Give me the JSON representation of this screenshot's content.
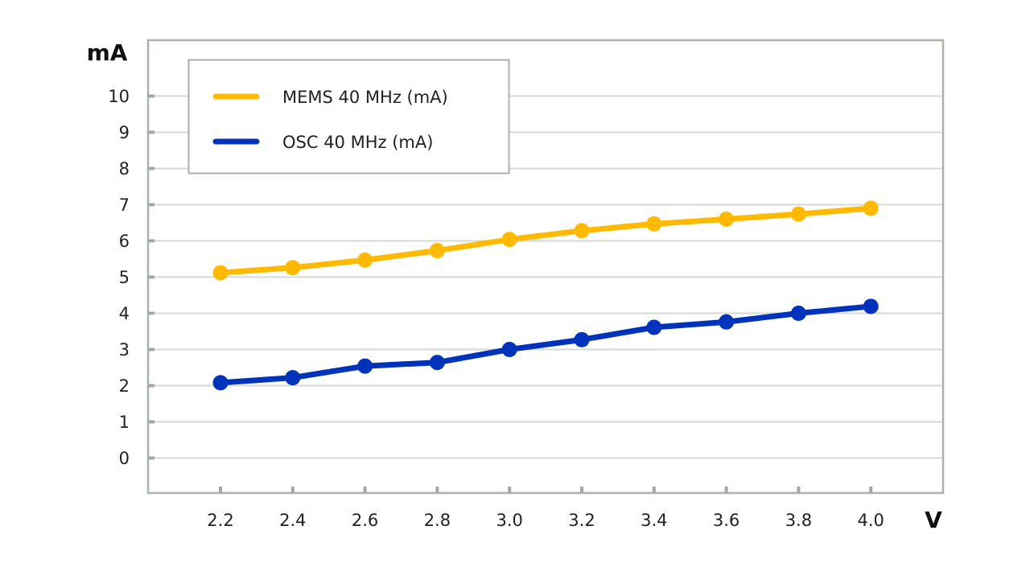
{
  "chart_data": {
    "type": "line",
    "title": "",
    "xlabel": "V",
    "ylabel": "mA",
    "x": [
      2.2,
      2.4,
      2.6,
      2.8,
      3.0,
      3.2,
      3.4,
      3.6,
      3.8,
      4.0
    ],
    "x_tick_labels": [
      "2.2",
      "2.4",
      "2.6",
      "2.8",
      "3.0",
      "3.2",
      "3.4",
      "3.6",
      "3.8",
      "4.0"
    ],
    "y_ticks": [
      0,
      1,
      2,
      3,
      4,
      5,
      6,
      7,
      8,
      9,
      10
    ],
    "y_tick_labels": [
      "0",
      "1",
      "2",
      "3",
      "4",
      "5",
      "6",
      "7",
      "8",
      "9",
      "10"
    ],
    "ylim": [
      -1,
      11.5
    ],
    "xlim": [
      1.8,
      4.2
    ],
    "grid": true,
    "legend_position": "top-left",
    "series": [
      {
        "name": "MEMS 40 MHz (mA)",
        "color": "#FFB900",
        "values": [
          5.12,
          5.26,
          5.47,
          5.73,
          6.04,
          6.28,
          6.47,
          6.6,
          6.74,
          6.9
        ]
      },
      {
        "name": "OSC 40 MHz (mA)",
        "color": "#0033BB",
        "values": [
          2.08,
          2.22,
          2.54,
          2.64,
          3.0,
          3.27,
          3.61,
          3.76,
          4.0,
          4.19
        ]
      }
    ]
  },
  "colors": {
    "axis": "#A9B4AD",
    "grid": "#D5D9D6",
    "legend_border": "#A9B0AC"
  }
}
